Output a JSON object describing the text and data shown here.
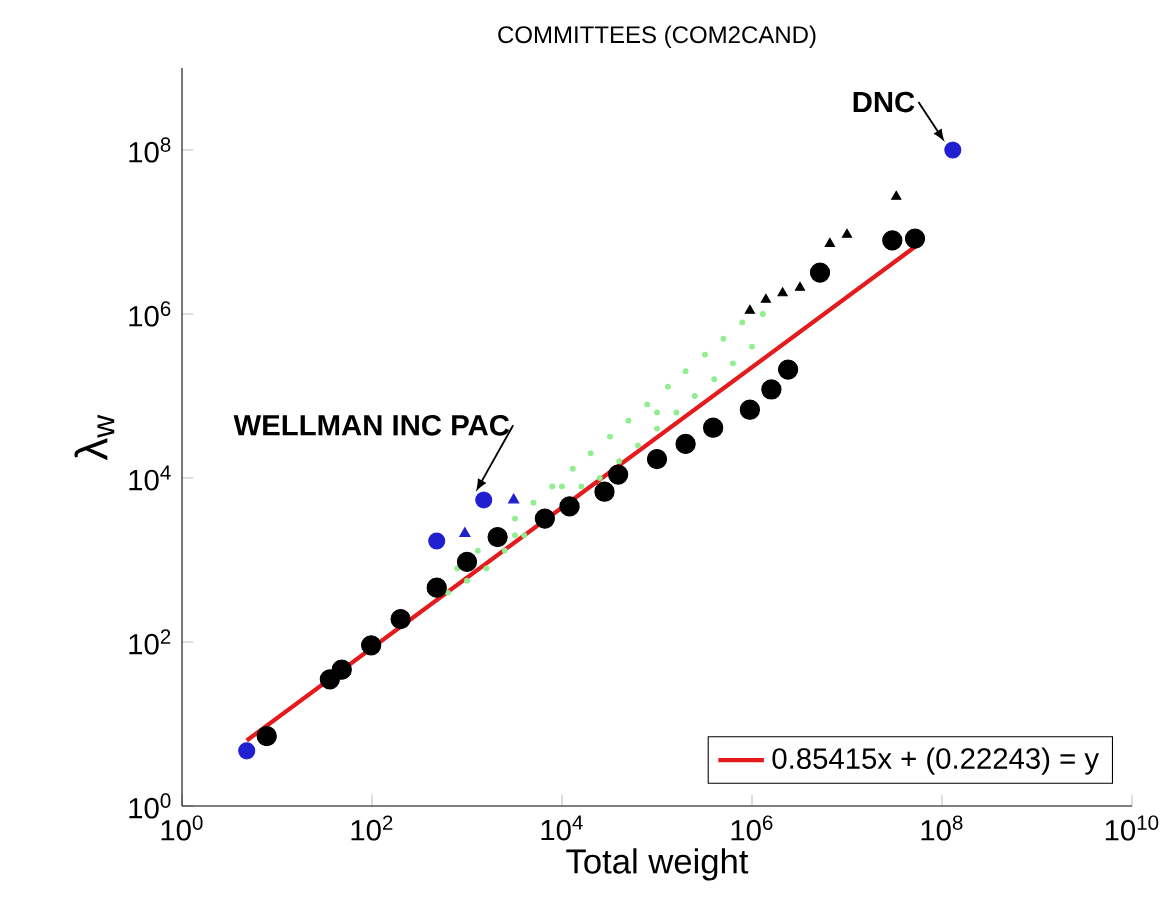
{
  "chart_data": {
    "type": "scatter",
    "title": "COMMITTEES (COM2CAND)",
    "xlabel": "Total weight",
    "ylabel": "λ$_{w}$",
    "log": "xy",
    "legend": "bottom right",
    "xlim": [
      1,
      10000000000
    ],
    "ylim": [
      1,
      1000000000
    ],
    "xticks": [
      {
        "value": 1,
        "label": "10$^{0}$"
      },
      {
        "value": 100,
        "label": "10$^{2}$"
      },
      {
        "value": 10000,
        "label": "10$^{4}$"
      },
      {
        "value": 1000000,
        "label": "10$^{6}$"
      },
      {
        "value": 100000000,
        "label": "10$^{8}$"
      },
      {
        "value": 10000000000,
        "label": "10$^{10}$"
      }
    ],
    "yticks": [
      {
        "value": 1,
        "label": "10$^{0}$"
      },
      {
        "value": 100,
        "label": "10$^{2}$"
      },
      {
        "value": 10000,
        "label": "10$^{4}$"
      },
      {
        "value": 1000000,
        "label": "10$^{6}$"
      },
      {
        "value": 100000000,
        "label": "10$^{8}$"
      }
    ],
    "annotations": [
      {
        "text": "WELLMAN INC PAC",
        "x": 1500,
        "y": 5400
      },
      {
        "text": "DNC",
        "x": 130000000,
        "y": 100000000
      }
    ],
    "series": [
      {
        "marker": "circle",
        "color": "#90ee90",
        "x": [
          630,
          790,
          1000,
          1300,
          1600,
          2500,
          3200,
          4000,
          5000,
          7900,
          13000,
          16000,
          20000,
          25000,
          32000,
          40000,
          50000,
          63000,
          79000,
          100000,
          130000,
          160000,
          200000,
          250000,
          320000,
          400000,
          500000,
          630000,
          790000,
          1000000,
          1300000,
          100000,
          10000,
          3200
        ],
        "values": [
          400,
          790,
          560,
          1300,
          790,
          1300,
          3200,
          2000,
          5000,
          7900,
          13000,
          7900,
          20000,
          10000,
          32000,
          16000,
          50000,
          25000,
          79000,
          40000,
          130000,
          63000,
          200000,
          100000,
          320000,
          160000,
          500000,
          250000,
          790000,
          400000,
          1000000,
          63000,
          7900,
          2000
        ]
      },
      {
        "marker": "circle",
        "color": "#000000",
        "x": [
          7.8,
          36,
          48,
          98,
          200,
          480,
          1000,
          2100,
          6600,
          12000,
          28000,
          39000,
          100000,
          200000,
          390000,
          950000,
          1600000,
          2400000,
          5200000,
          30000000,
          52000000
        ],
        "values": [
          7.1,
          35,
          46,
          91,
          190,
          460,
          950,
          1900,
          3200,
          4500,
          6800,
          11000,
          17000,
          26000,
          41000,
          68000,
          120000,
          210000,
          3200000,
          7900000,
          8300000
        ]
      },
      {
        "marker": "triangle",
        "color": "#000000",
        "x": [
          950000,
          1400000,
          2100000,
          3200000,
          6600000,
          10000000,
          33000000
        ],
        "values": [
          1100000,
          1500000,
          1800000,
          2100000,
          7200000,
          9300000,
          27000000
        ]
      },
      {
        "marker": "triangle",
        "color": "#2020d0",
        "x": [
          3100,
          950
        ],
        "values": [
          5400,
          2100
        ]
      },
      {
        "marker": "circle",
        "color": "#2020d0",
        "x": [
          4.8,
          480,
          1500,
          130000000
        ],
        "values": [
          4.7,
          1700,
          5400,
          100000000
        ]
      },
      {
        "type": "line",
        "name": "0.85415x + (0.22243) = y",
        "color": "#e41a1c",
        "line_style": "solid",
        "x": [
          4.8,
          52000000
        ],
        "values": [
          6.3,
          6600000
        ]
      }
    ]
  }
}
